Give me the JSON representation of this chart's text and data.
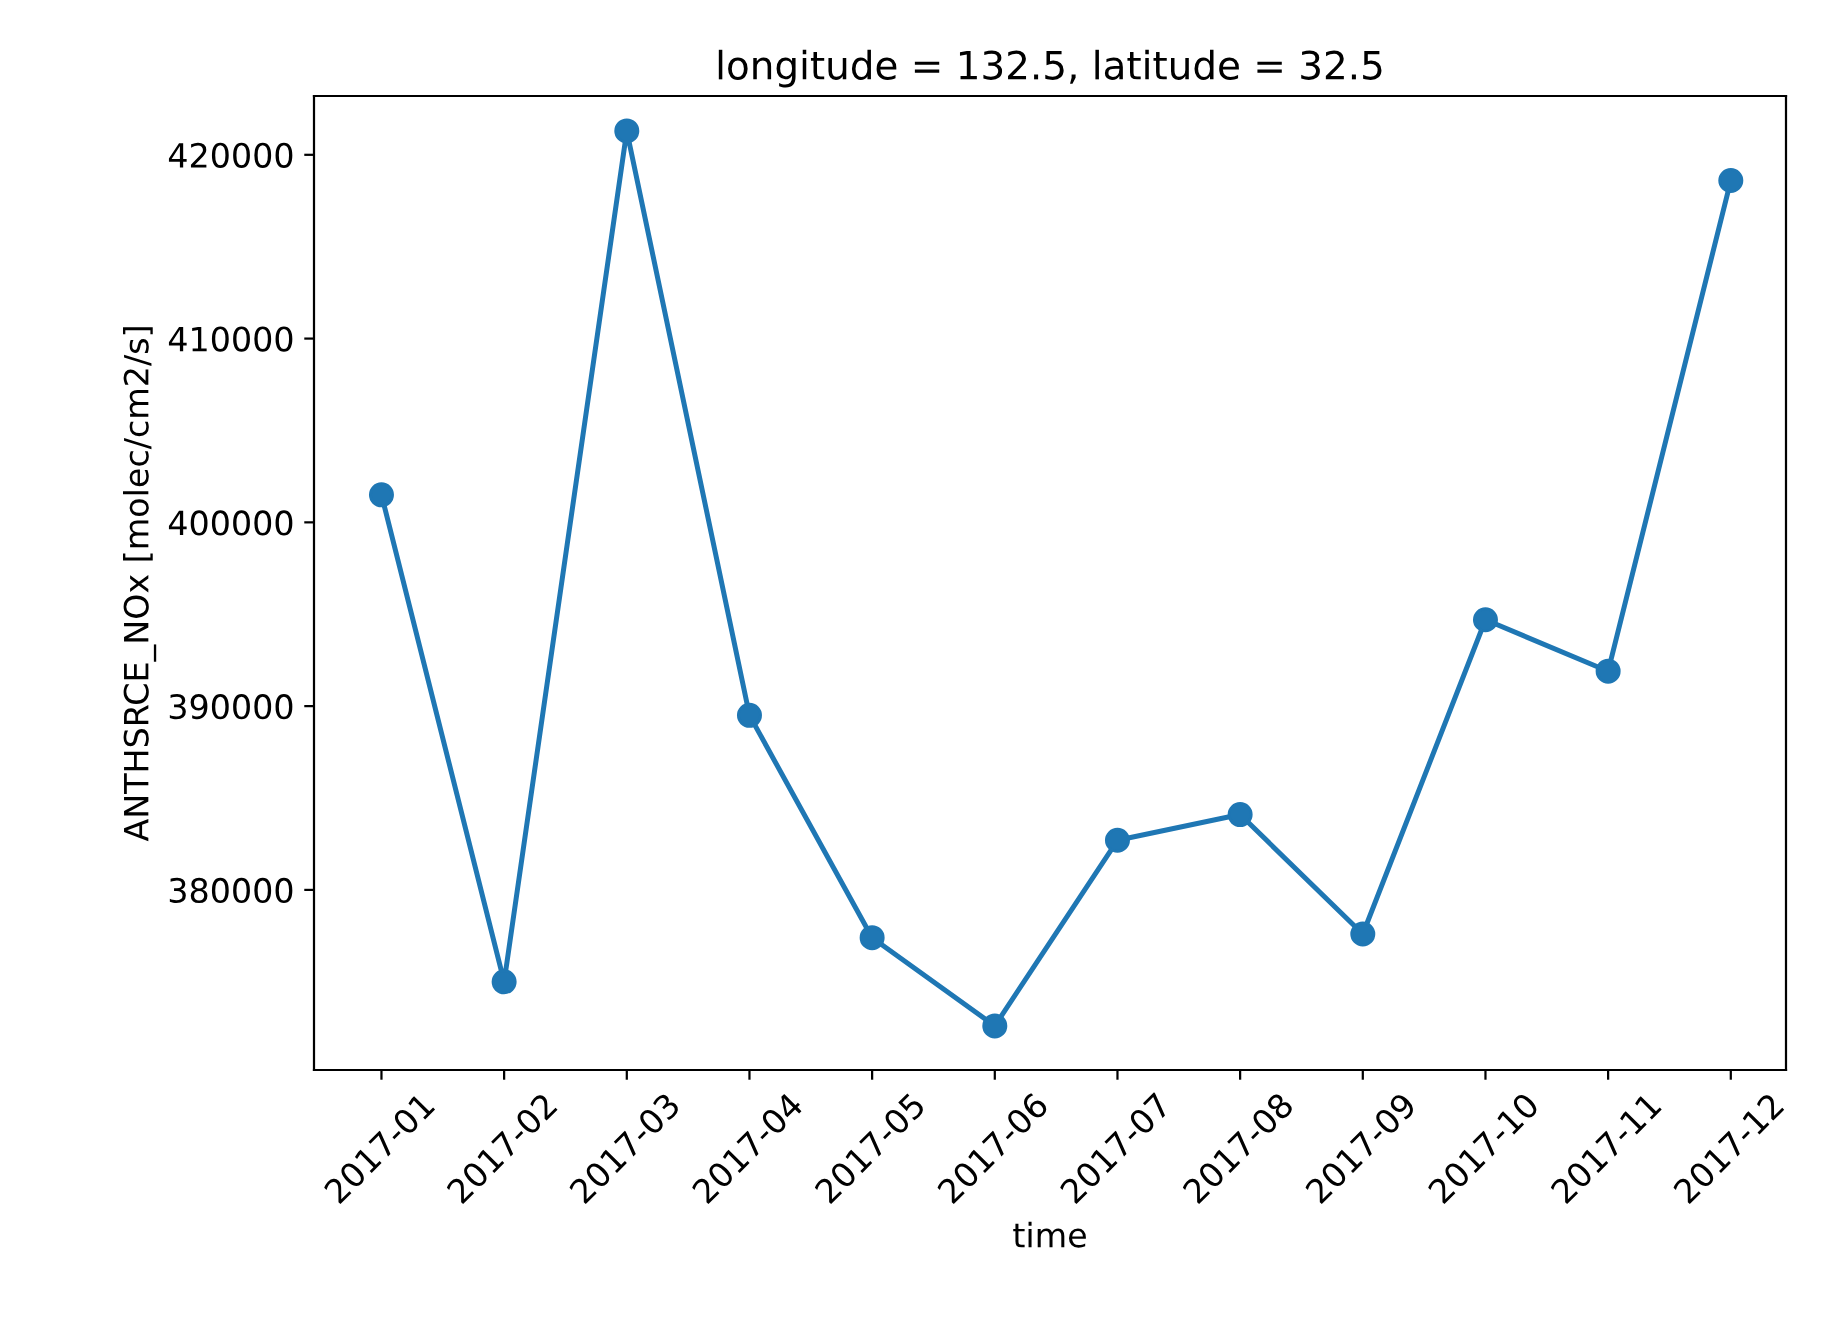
{
  "chart_data": {
    "type": "line",
    "title": "longitude = 132.5, latitude = 32.5",
    "xlabel": "time",
    "ylabel": "ANTHSRCE_NOx [molec/cm2/s]",
    "categories": [
      "2017-01",
      "2017-02",
      "2017-03",
      "2017-04",
      "2017-05",
      "2017-06",
      "2017-07",
      "2017-08",
      "2017-09",
      "2017-10",
      "2017-11",
      "2017-12"
    ],
    "series": [
      {
        "color": "#1f77b4",
        "values": [
          401500,
          375000,
          421300,
          389500,
          377400,
          372600,
          382700,
          384100,
          377600,
          394700,
          391900,
          418600
        ]
      }
    ],
    "ylim": [
      370200,
      423200
    ],
    "yticks": [
      380000,
      390000,
      400000,
      410000,
      420000
    ],
    "marker": "circle",
    "line_style": "solid",
    "grid": false,
    "legend": false
  }
}
